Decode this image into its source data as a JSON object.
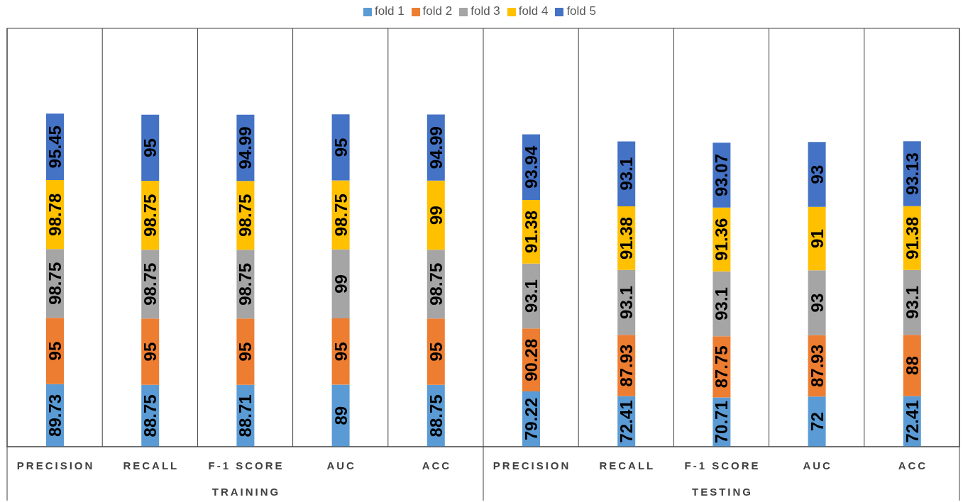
{
  "chart_data": {
    "type": "bar",
    "stacked": true,
    "data_labels": true,
    "legend": "top",
    "grid": "x",
    "categories": [
      "PRECISION",
      "RECALL",
      "F-1 SCORE",
      "AUC",
      "ACC",
      "PRECISION",
      "RECALL",
      "F-1 SCORE",
      "AUC",
      "ACC"
    ],
    "series": [
      {
        "name": "fold 1",
        "color": "#5b9bd5",
        "values": [
          89.73,
          88.75,
          88.71,
          89,
          88.75,
          79.22,
          72.41,
          70.71,
          72,
          72.41
        ]
      },
      {
        "name": "fold 2",
        "color": "#ed7d31",
        "values": [
          95,
          95,
          95,
          95,
          95,
          90.28,
          87.93,
          87.75,
          87.93,
          88
        ]
      },
      {
        "name": "fold 3",
        "color": "#a5a5a5",
        "values": [
          98.75,
          98.75,
          98.75,
          99,
          98.75,
          93.1,
          93.1,
          93.1,
          93,
          93.1
        ]
      },
      {
        "name": "fold 4",
        "color": "#ffc000",
        "values": [
          98.78,
          98.75,
          98.75,
          98.75,
          99,
          91.38,
          91.38,
          91.36,
          91,
          91.38
        ]
      },
      {
        "name": "fold 5",
        "color": "#4472c4",
        "values": [
          95.45,
          95,
          94.99,
          95,
          94.99,
          93.94,
          93.1,
          93.07,
          93,
          93.13
        ]
      }
    ],
    "annotations": [
      "TRAINING",
      "TESTING"
    ]
  }
}
